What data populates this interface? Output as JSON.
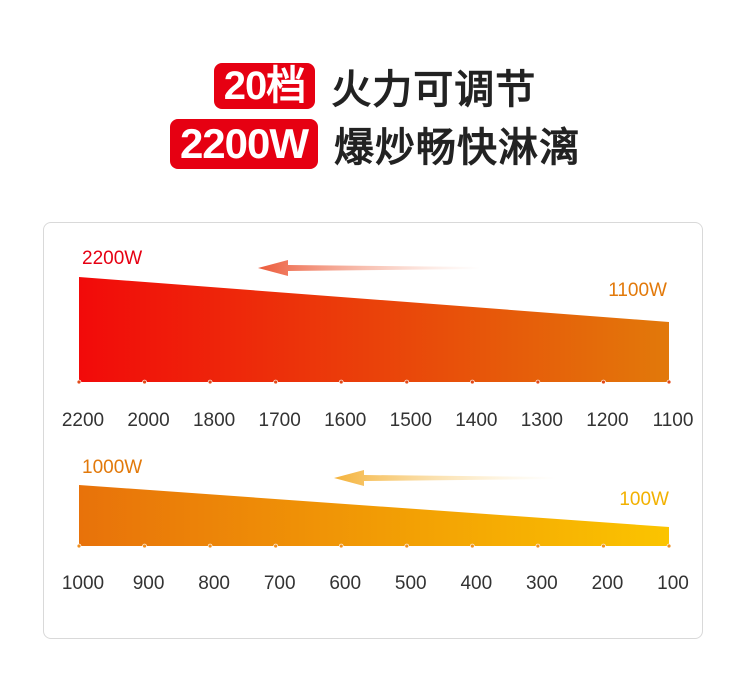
{
  "headline": {
    "line1_badge": "20档",
    "line1_text": "火力可调节",
    "line2_badge": "2200W",
    "line2_text": "爆炒畅快淋漓"
  },
  "colors": {
    "badge_red": "#e60012",
    "upper_gradient": [
      "#f20a0a",
      "#e2790a"
    ],
    "lower_gradient": [
      "#e8720a",
      "#fbc400"
    ],
    "upper_left_label": "#e60012",
    "upper_right_label": "#e2790a",
    "lower_left_label": "#e2790a",
    "lower_right_label": "#f2b100"
  },
  "chart_data": [
    {
      "type": "area",
      "left_label": "2200W",
      "right_label": "1100W",
      "ticks": [
        "2200",
        "2000",
        "1800",
        "1700",
        "1600",
        "1500",
        "1400",
        "1300",
        "1200",
        "1100"
      ],
      "values": [
        2200,
        2000,
        1800,
        1700,
        1600,
        1500,
        1400,
        1300,
        1200,
        1100
      ],
      "direction_arrow": "left"
    },
    {
      "type": "area",
      "left_label": "1000W",
      "right_label": "100W",
      "ticks": [
        "1000",
        "900",
        "800",
        "700",
        "600",
        "500",
        "400",
        "300",
        "200",
        "100"
      ],
      "values": [
        1000,
        900,
        800,
        700,
        600,
        500,
        400,
        300,
        200,
        100
      ],
      "direction_arrow": "left"
    }
  ]
}
